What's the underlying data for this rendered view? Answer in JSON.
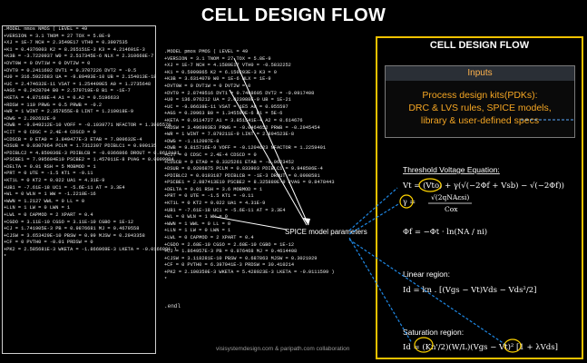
{
  "title": "CELL DESIGN FLOW",
  "left_model": {
    "lines": [
      ".MODEL nmos NMOS ( LEVEL = 49",
      "+VERSION = 3.1 TNOM = 27 TOX = 5.8E-9",
      "+XJ = 1E-7 NCH = 2.3549E17 VTH0 = 0.3907535",
      "+K1 = 0.4376003 K2 = 8.265151E-3 K3 = 4.214601E-3",
      "+K3B = -3.7220937 W0 = 2.517345E-6 NLX = 2.310668E-7",
      "+DVT0W = 0 DVT1W = 0 DVT2W = 0",
      "+DVT0 = 0.2411602 DVT1 = 0.3707226 DVT2 = -0.5",
      "+U0 = 316.5922683 UA = -9.89493E-10 UB = 2.154013E-18",
      "+UC = 2.474632E-11 VSAT = 1.254499E5 A0 = 1.2735648",
      "+AGS = 0.2428704 B0 = 2.579719E-8 B1 = -1E-7",
      "+KETA = 4.87168E-4 A1 = 0.A2 = 0.5196633",
      "+RDSW = 110 PRWG = 0.5 PRWB = -0.2",
      "+WR = 1 WINT = 2.357855E-8 LINT = 1.210018E-9",
      "+DWG = 2.292632E-9",
      "+DWB = -9.949212E-10 VOFF = -0.1039771 NFACTOR = 1.3905578",
      "+CIT = 0 CDSC = 2.4E-4 CDSCD = 0",
      "+CDSCB = 0 ETA0 = 3.849477E-3 ETAB = 7.800632E-4",
      "+DSUB = 0.0307964 PCLM = 1.7312397 PDIBLC1 = 0.999135",
      "+PDIBLC2 = 4.850036E-3 PDIBLCB = -0.0366866 DROUT = 0.8612131",
      "+PSCBE1 = 7.995684E10 PSCBE2 = 1.457011E-8 PVAG = 0.0099984",
      "+DELTA = 0.01 RSH = 5 MOBMOD = 1",
      "+PRT = 0 UTE = -1.5 KT1 = -0.11",
      "+KT1L = 0 KT2 = 0.022 UA1 = 4.31E-9",
      "+UB1 = -7.61E-18 UC1 = -5.6E-11 AT = 3.3E4",
      "+WL = 0 WLN = 1 WW = -1.2218E-16",
      "+WWN = 1.2127 WWL = 0 LL = 0",
      "+LLN = 1 LW = 0 LWN = 1",
      "+LWL = 0 CAPMOD = 2 XPART = 0.4",
      "+CGDO = 3.11E-10 CGSO = 3.11E-10 CGBO = 1E-12",
      "+CJ = 1.741905E-3 PB = 0.9876681 MJ = 0.4679558",
      "+CJSW = 3.653429E-10 PBSW = 0.99 MJSW = 0.2943358",
      "+CF = 0 PVTH0 = -0.01 PRDSW = 0",
      "+PK2 = 2.585681E-3 WKETA = -1.866069E-3 LKETA = -0.0166991 )",
      "*"
    ]
  },
  "mid_model": {
    "lines": [
      ".MODEL pmos PMOS ( LEVEL = 49",
      "+VERSION = 3.1 TNOM = 27 TOX = 5.8E-9",
      "+XJ = 1E-7 NCH = 4.1589E17 VTH0 = -0.5832252",
      "+K1 = 0.5999865 K2 = 6.150203E-3 K3 = 0",
      "+K3B = 3.6314079 W0 = 1E-6 NLX = 1E-9",
      "+DVT0W = 0 DVT1W = 0 DVT2W = 0",
      "+DVT0 = 2.8749516 DVT1 = 0.7488605 DVT2 = -0.0917408",
      "+U0 = 136.076212 UA = 2.023988E-9 UB = 1E-21",
      "+UC = -9.06638E-11 VSAT = 1E5 A0 = 0.955597",
      "+AGS = 0.20963 B0 = 1.345599E-6 B1 = 5E-6",
      "+KETA = 0.0114727 A1 = 3.851541E-4 A2 = 0.614676",
      "+RDSW = 3.496993E3 PRWG = -0.0464652 PRWB = -0.2945454",
      "+WR = 1 WINT = 7.879211E-9 LINT = 2.894523E-8",
      "+DWG = -1.112097E-8",
      "+DWB = 9.815716E-9 VOFF = -0.1204623 NFACTOR = 1.2259401",
      "+CIT = 0 CDSC = 2.4E-4 CDSCD = 0",
      "+CDSCB = 0 ETA0 = 0.3325261 ETAB = -0.0623452",
      "+DSUB = 0.9206875 PCLM = 0.833903 PDIBLC1 = 9.948506E-4",
      "+PDIBLC2 = 0.0193187 PDIBLCB = -1E-3 DROUT = 0.0998581",
      "+PSCBE1 = 2.887413E10 PSCBE2 = 8.325889E-9 PVAG = 0.8478443",
      "+DELTA = 0.01 RSH = 3.6 MOBMOD = 1",
      "+PRT = 0 UTE = -1.5 KT1 = -0.11",
      "+KT1L = 0 KT2 = 0.022 UA1 = 4.31E-9",
      "+UB1 = -7.61E-18 UC1 = -5.6E-11 AT = 3.3E4",
      "+WL = 0 WLN = 1 WW = 0",
      "+WWN = 1 WWL = 0 LL = 0",
      "+LLN = 1 LW = 0 LWN = 1",
      "+LWL = 0 CAPMOD = 2 XPART = 0.4",
      "+CGDO = 2.68E-10 CGSO = 2.68E-10 CGBO = 1E-12",
      "+CJ = 1.864957E-3 PB = 0.976468 MJ = 0.4614408",
      "+CJSW = 3.118281E-10 PBSW = 0.687863 MJSW = 0.3021929",
      "+CF = 0 PVTH0 = 6.397941E-3 PRDSW = 30.410214",
      "+PK2 = 2.100359E-3 WKETA = 5.428923E-3 LKETA = -0.0111599 )",
      "*"
    ]
  },
  "end_label": ".endl",
  "spice_label": "SPICE model parameters",
  "right_panel": {
    "title": "CELL DESIGN FLOW",
    "inputs_header": "Inputs",
    "inputs_lines": [
      "Process design kits(PDKs):",
      "DRC & LVS rules, SPICE models,",
      "library & user-defined specs"
    ],
    "threshold_label": "Threshold Voltage Equation:",
    "linear_label": "Linear region:",
    "saturation_label": "Saturation region:"
  },
  "credit": "visisystemdesign.com & paripath.com collaboration",
  "colors": {
    "accent": "#f2c200",
    "inputs_text": "#f5a623",
    "arrow": "#1e88e5",
    "highlight": "#ffd400"
  }
}
